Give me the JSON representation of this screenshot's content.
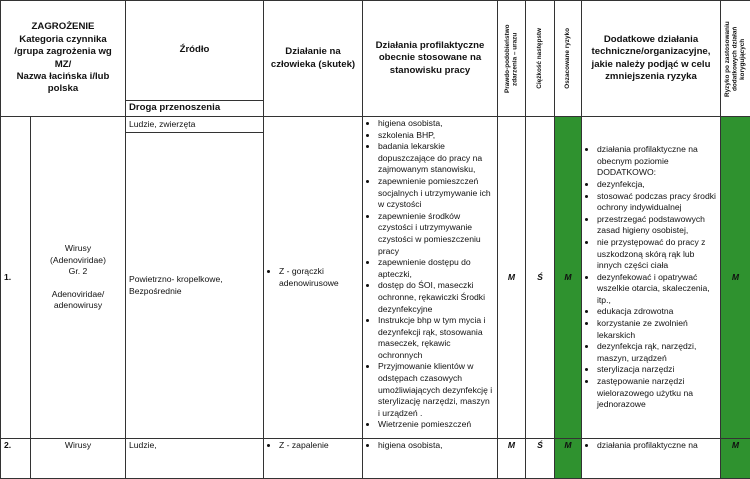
{
  "header": {
    "threat": [
      "ZAGROŻENIE",
      "Kategoria czynnika",
      "/grupa zagrożenia wg",
      "MZ/",
      "Nazwa łacińska i/lub",
      "polska"
    ],
    "source": "Źródło",
    "transmission": "Droga przenoszenia",
    "effect": "Działanie na człowieka (skutek)",
    "preventive": "Działania profilaktyczne obecnie stosowane na stanowisku pracy",
    "probability": "Prawdo-podobieństwo zdarzenia – urazu",
    "severity": "Ciężkość następstw",
    "risk": "Oszacowane ryzyko",
    "additional": "Dodatkowe działania techniczne/organizacyjne, jakie należy podjąć w celu zmniejszenia ryzyka",
    "residual": "Ryzyko po zastosowaniu dodatkowych działań korygujących"
  },
  "rows": [
    {
      "no": "1.",
      "agent": {
        "name": "Wirusy",
        "latin": "(Adenoviridae)",
        "group": "Gr. 2",
        "names": "Adenoviridae/ adenowirusy"
      },
      "carriers": "Ludzie, zwierzęta",
      "transmission": "Powietrzno- kropelkowe, Bezpośrednie",
      "effects": [
        "Z - gorączki adenowirusowe"
      ],
      "preventive": [
        "higiena osobista,",
        "szkolenia BHP,",
        "badania lekarskie dopuszczające do pracy na zajmowanym stanowisku,",
        "zapewnienie pomieszczeń socjalnych i utrzymywanie ich w czystości",
        "zapewnienie środków czystości i utrzymywanie czystości w pomieszczeniu pracy",
        "zapewnienie dostępu do apteczki,",
        "dostęp do ŚOI, maseczki ochronne, rękawiczki Środki dezynfekcyjne",
        "Instrukcje bhp w tym mycia i dezynfekcji rąk, stosowania maseczek, rękawic ochronnych",
        "Przyjmowanie klientów w odstępach czasowych umożliwiających dezynfekcję i sterylizację narzędzi, maszyn i urządzeń .",
        "Wietrzenie pomieszczeń"
      ],
      "probability": "M",
      "severity": "Ś",
      "risk": "M",
      "additional": [
        "działania profilaktyczne na obecnym poziomie DODATKOWO:",
        "dezynfekcja,",
        "stosować podczas pracy środki ochrony indywidualnej",
        "przestrzegać podstawowych zasad higieny osobistej,",
        "nie przystępować do pracy z uszkodzoną skórą rąk lub innych części ciała",
        "dezynfekować i opatrywać wszelkie otarcia, skaleczenia, itp.,",
        "edukacja zdrowotna",
        "korzystanie ze zwolnień lekarskich",
        "dezynfekcja rąk, narzędzi, maszyn, urządzeń",
        "sterylizacja narzędzi",
        "zastępowanie narzędzi wielorazowego użytku na jednorazowe"
      ],
      "residual": "M"
    },
    {
      "no": "2.",
      "agent": {
        "name": "Wirusy"
      },
      "carriers": "Ludzie,",
      "effects": [
        "Z - zapalenie"
      ],
      "preventive": [
        "higiena osobista,"
      ],
      "probability": "M",
      "severity": "Ś",
      "risk": "M",
      "additional": [
        "działania profilaktyczne na"
      ],
      "residual": "M"
    }
  ]
}
